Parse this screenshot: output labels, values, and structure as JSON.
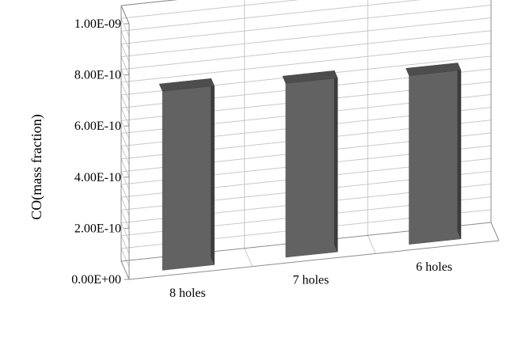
{
  "chart_data": {
    "type": "bar",
    "title": "",
    "xlabel": "",
    "ylabel": "CO(mass fraction)",
    "categories": [
      "8 holes",
      "7 holes",
      "6 holes"
    ],
    "values": [
      7e-10,
      6.8e-10,
      6.6e-10
    ],
    "ylim": [
      0,
      1e-09
    ],
    "ytick_labels": [
      "0.00E+00",
      "2.00E-10",
      "4.00E-10",
      "6.00E-10",
      "8.00E-10",
      "1.00E-09"
    ],
    "grid": true,
    "legend": "none",
    "three_d": true,
    "colors": {
      "bar_front": "#626262",
      "bar_side": "#3c3c3c",
      "bar_top": "#4d4d4d",
      "grid": "#c8c8c8",
      "axis": "#8c8c8c"
    }
  }
}
